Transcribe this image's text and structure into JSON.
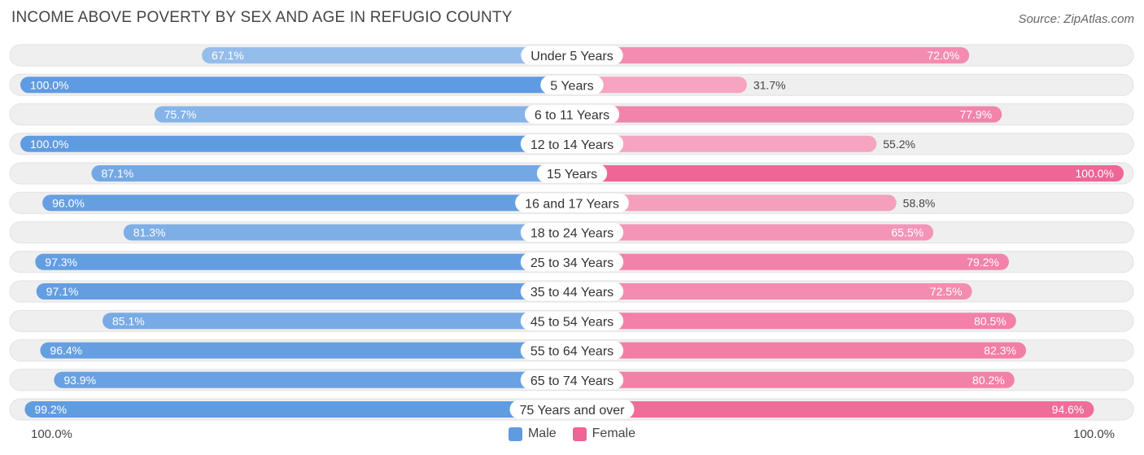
{
  "header": {
    "title": "INCOME ABOVE POVERTY BY SEX AND AGE IN REFUGIO COUNTY",
    "source": "Source: ZipAtlas.com"
  },
  "axis": {
    "left_label": "100.0%",
    "right_label": "100.0%"
  },
  "legend": {
    "male_label": "Male",
    "female_label": "Female"
  },
  "colors": {
    "male_light": "#a9c9ef",
    "male_dark": "#5f9be0",
    "female_light": "#f6a4c1",
    "female_dark": "#ef6595",
    "track": "#efefef"
  },
  "chart_data": {
    "type": "bar",
    "orientation": "horizontal-diverging",
    "title": "INCOME ABOVE POVERTY BY SEX AND AGE IN REFUGIO COUNTY",
    "categories": [
      "Under 5 Years",
      "5 Years",
      "6 to 11 Years",
      "12 to 14 Years",
      "15 Years",
      "16 and 17 Years",
      "18 to 24 Years",
      "25 to 34 Years",
      "35 to 44 Years",
      "45 to 54 Years",
      "55 to 64 Years",
      "65 to 74 Years",
      "75 Years and over"
    ],
    "series": [
      {
        "name": "Male",
        "values": [
          67.1,
          100.0,
          75.7,
          100.0,
          87.1,
          96.0,
          81.3,
          97.3,
          97.1,
          85.1,
          96.4,
          93.9,
          99.2
        ],
        "labels": [
          "67.1%",
          "100.0%",
          "75.7%",
          "100.0%",
          "87.1%",
          "96.0%",
          "81.3%",
          "97.3%",
          "97.1%",
          "85.1%",
          "96.4%",
          "93.9%",
          "99.2%"
        ]
      },
      {
        "name": "Female",
        "values": [
          72.0,
          31.7,
          77.9,
          55.2,
          100.0,
          58.8,
          65.5,
          79.2,
          72.5,
          80.5,
          82.3,
          80.2,
          94.6
        ],
        "labels": [
          "72.0%",
          "31.7%",
          "77.9%",
          "55.2%",
          "100.0%",
          "58.8%",
          "65.5%",
          "79.2%",
          "72.5%",
          "80.5%",
          "82.3%",
          "80.2%",
          "94.6%"
        ]
      }
    ],
    "xlim": [
      0,
      100
    ]
  }
}
